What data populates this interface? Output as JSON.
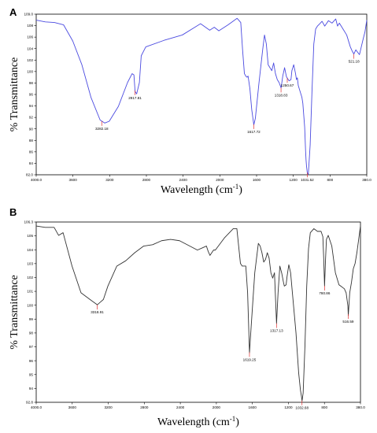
{
  "chart_data": [
    {
      "type": "line",
      "panel": "A",
      "xlabel": "Wavelength  (cm",
      "xlabel_sup": "-1",
      "xlabel_end": ")",
      "ylabel": "% Transmittance",
      "xlim": [
        4000.0,
        380.0
      ],
      "ylim": [
        82.0,
        109.0
      ],
      "x_tick_labels": [
        "4000.0",
        "3600",
        "3200",
        "2800",
        "2400",
        "2000",
        "1600",
        "1200",
        "800",
        "380.0"
      ],
      "y_tick_labels": [
        "82.0",
        "84",
        "86",
        "88",
        "90",
        "92",
        "94",
        "96",
        "98",
        "100",
        "102",
        "104",
        "106",
        "108",
        "109.0"
      ],
      "line_color": "#4a4ae0",
      "x": [
        4000,
        3900,
        3800,
        3700,
        3600,
        3500,
        3400,
        3300,
        3250,
        3200,
        3100,
        3000,
        2950,
        2930,
        2917,
        2900,
        2870,
        2850,
        2800,
        2600,
        2400,
        2200,
        2100,
        2050,
        2000,
        1900,
        1800,
        1760,
        1740,
        1720,
        1700,
        1690,
        1680,
        1660,
        1640,
        1617,
        1600,
        1560,
        1520,
        1500,
        1480,
        1460,
        1440,
        1420,
        1400,
        1380,
        1360,
        1340,
        1318,
        1300,
        1280,
        1260,
        1240,
        1230,
        1210,
        1200,
        1180,
        1160,
        1150,
        1140,
        1130,
        1110,
        1090,
        1080,
        1060,
        1050,
        1045,
        1040,
        1031,
        1020,
        1000,
        980,
        960,
        940,
        920,
        900,
        870,
        840,
        800,
        760,
        720,
        700,
        680,
        660,
        640,
        600,
        560,
        540,
        521,
        500,
        480,
        460,
        440,
        420,
        400,
        380
      ],
      "y": [
        108.0,
        107.7,
        107.6,
        107.2,
        104.5,
        100.5,
        95.0,
        91.2,
        90.7,
        91.0,
        93.5,
        97.5,
        99.0,
        98.8,
        96.0,
        95.6,
        97.5,
        102.0,
        103.5,
        104.6,
        105.5,
        107.4,
        106.3,
        106.8,
        106.2,
        107.2,
        108.3,
        107.6,
        103.0,
        99.0,
        98.5,
        98.4,
        98.6,
        96.5,
        93.0,
        90.4,
        91.5,
        97.5,
        103.0,
        105.5,
        104.0,
        100.5,
        100.0,
        99.5,
        100.8,
        99.0,
        98.0,
        97.5,
        96.6,
        98.6,
        100.0,
        98.5,
        98.0,
        97.8,
        98.0,
        99.5,
        100.5,
        99.0,
        98.0,
        98.3,
        97.0,
        96.0,
        95.0,
        94.0,
        90.0,
        86.0,
        84.5,
        83.5,
        82.3,
        82.1,
        87.0,
        96.0,
        104.0,
        106.5,
        107.0,
        107.3,
        107.8,
        107.0,
        107.9,
        107.5,
        108.2,
        107.0,
        107.5,
        107.0,
        106.5,
        105.5,
        103.5,
        102.8,
        102.3,
        103.0,
        102.6,
        102.2,
        103.5,
        104.8,
        106.0,
        108.0
      ],
      "peaks": [
        {
          "x": 3282.18,
          "label": "3282.18"
        },
        {
          "x": 2917.81,
          "label": "2917.81"
        },
        {
          "x": 1617.72,
          "label": "1617.72"
        },
        {
          "x": 1318.83,
          "label": "1318.83"
        },
        {
          "x": 1250.67,
          "label": "1250.67"
        },
        {
          "x": 1031.52,
          "label": "1031.52"
        },
        {
          "x": 521.18,
          "label": "521.18"
        }
      ]
    },
    {
      "type": "line",
      "panel": "B",
      "xlabel": "Wavelength  (cm",
      "xlabel_sup": "-1",
      "xlabel_end": ")",
      "ylabel": "% Transmittance",
      "xlim": [
        4000.0,
        380.0
      ],
      "ylim": [
        92.8,
        106.3
      ],
      "x_tick_labels": [
        "4000.0",
        "3600",
        "3200",
        "2800",
        "2400",
        "2000",
        "1600",
        "1200",
        "800",
        "380.0"
      ],
      "y_tick_labels": [
        "92.8",
        "94",
        "95",
        "96",
        "97",
        "98",
        "99",
        "100",
        "101",
        "102",
        "103",
        "104",
        "105",
        "106.3"
      ],
      "line_color": "#333333",
      "x": [
        4000,
        3900,
        3800,
        3750,
        3700,
        3600,
        3500,
        3400,
        3318,
        3250,
        3200,
        3100,
        3000,
        2900,
        2800,
        2700,
        2600,
        2500,
        2400,
        2200,
        2100,
        2080,
        2060,
        2040,
        2020,
        2000,
        1900,
        1800,
        1760,
        1740,
        1720,
        1700,
        1660,
        1640,
        1619,
        1600,
        1560,
        1520,
        1500,
        1480,
        1460,
        1440,
        1420,
        1400,
        1380,
        1360,
        1340,
        1317,
        1300,
        1280,
        1260,
        1240,
        1230,
        1210,
        1200,
        1180,
        1160,
        1140,
        1120,
        1100,
        1080,
        1070,
        1050,
        1040,
        1032,
        1020,
        1000,
        980,
        960,
        940,
        900,
        860,
        820,
        800,
        790,
        781,
        770,
        760,
        740,
        700,
        660,
        620,
        600,
        560,
        540,
        520,
        516,
        500,
        480,
        460,
        440,
        420,
        400,
        380
      ],
      "y": [
        106.0,
        105.9,
        105.9,
        105.3,
        105.5,
        103.0,
        101.0,
        100.5,
        100.1,
        100.5,
        101.5,
        103.0,
        103.4,
        104.0,
        104.5,
        104.6,
        104.9,
        105.0,
        104.9,
        104.2,
        104.5,
        104.1,
        103.8,
        104.0,
        104.2,
        104.2,
        105.1,
        105.8,
        105.8,
        104.5,
        103.2,
        103.0,
        103.0,
        101.0,
        96.5,
        98.5,
        102.5,
        104.7,
        104.5,
        104.0,
        103.3,
        103.5,
        104.0,
        103.6,
        102.5,
        102.1,
        102.5,
        98.7,
        101.0,
        103.0,
        102.5,
        101.8,
        101.5,
        101.6,
        102.2,
        103.1,
        102.5,
        101.0,
        99.5,
        98.0,
        96.0,
        95.0,
        93.7,
        93.3,
        92.9,
        93.5,
        97.0,
        101.5,
        104.3,
        105.5,
        105.8,
        105.6,
        105.6,
        105.2,
        103.5,
        101.5,
        103.5,
        105.0,
        105.3,
        104.5,
        102.5,
        101.6,
        101.5,
        101.3,
        101.0,
        100.0,
        99.3,
        101.0,
        101.8,
        102.8,
        103.2,
        104.0,
        105.0,
        106.0
      ],
      "peaks": [
        {
          "x": 3318.91,
          "label": "3318.91"
        },
        {
          "x": 1619.25,
          "label": "1619.25"
        },
        {
          "x": 1317.13,
          "label": "1317.13"
        },
        {
          "x": 1032.68,
          "label": "1032.68"
        },
        {
          "x": 780.86,
          "label": "780.86"
        },
        {
          "x": 516.59,
          "label": "516.59"
        }
      ]
    }
  ]
}
